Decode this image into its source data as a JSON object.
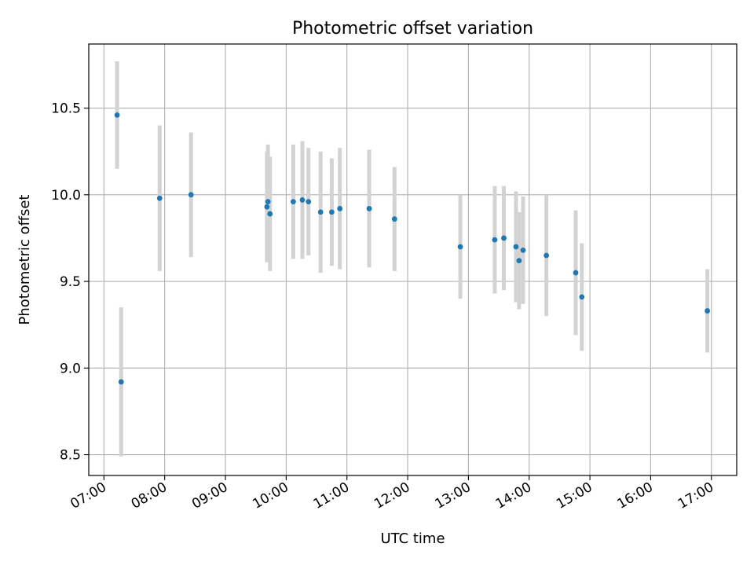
{
  "chart_data": {
    "type": "scatter",
    "title": "Photometric offset variation",
    "xlabel": "UTC time",
    "ylabel": "Photometric offset",
    "x_axis_type": "time",
    "xlim": [
      "06:45",
      "17:25"
    ],
    "ylim": [
      8.38,
      10.87
    ],
    "x_ticks": [
      "07:00",
      "08:00",
      "09:00",
      "10:00",
      "11:00",
      "12:00",
      "13:00",
      "14:00",
      "15:00",
      "16:00",
      "17:00"
    ],
    "y_ticks": [
      "8.5",
      "9.0",
      "9.5",
      "10.0",
      "10.5"
    ],
    "grid": true,
    "legend": false,
    "point_color": "#1f77b4",
    "errorbar_color": "#d3d3d3",
    "points": [
      {
        "x": "07:13",
        "y": 10.46,
        "err": 0.31
      },
      {
        "x": "07:17",
        "y": 8.92,
        "err": 0.43
      },
      {
        "x": "07:55",
        "y": 9.98,
        "err": 0.42
      },
      {
        "x": "08:26",
        "y": 10.0,
        "err": 0.36
      },
      {
        "x": "09:41",
        "y": 9.93,
        "err": 0.32
      },
      {
        "x": "09:42",
        "y": 9.96,
        "err": 0.33
      },
      {
        "x": "09:44",
        "y": 9.89,
        "err": 0.33
      },
      {
        "x": "10:07",
        "y": 9.96,
        "err": 0.33
      },
      {
        "x": "10:16",
        "y": 9.97,
        "err": 0.34
      },
      {
        "x": "10:22",
        "y": 9.96,
        "err": 0.31
      },
      {
        "x": "10:34",
        "y": 9.9,
        "err": 0.35
      },
      {
        "x": "10:45",
        "y": 9.9,
        "err": 0.31
      },
      {
        "x": "10:53",
        "y": 9.92,
        "err": 0.35
      },
      {
        "x": "11:22",
        "y": 9.92,
        "err": 0.34
      },
      {
        "x": "11:47",
        "y": 9.86,
        "err": 0.3
      },
      {
        "x": "12:52",
        "y": 9.7,
        "err": 0.3
      },
      {
        "x": "13:26",
        "y": 9.74,
        "err": 0.31
      },
      {
        "x": "13:35",
        "y": 9.75,
        "err": 0.3
      },
      {
        "x": "13:47",
        "y": 9.7,
        "err": 0.32
      },
      {
        "x": "13:50",
        "y": 9.62,
        "err": 0.28
      },
      {
        "x": "13:54",
        "y": 9.68,
        "err": 0.31
      },
      {
        "x": "14:17",
        "y": 9.65,
        "err": 0.35
      },
      {
        "x": "14:46",
        "y": 9.55,
        "err": 0.36
      },
      {
        "x": "14:52",
        "y": 9.41,
        "err": 0.31
      },
      {
        "x": "16:56",
        "y": 9.33,
        "err": 0.24
      }
    ]
  }
}
